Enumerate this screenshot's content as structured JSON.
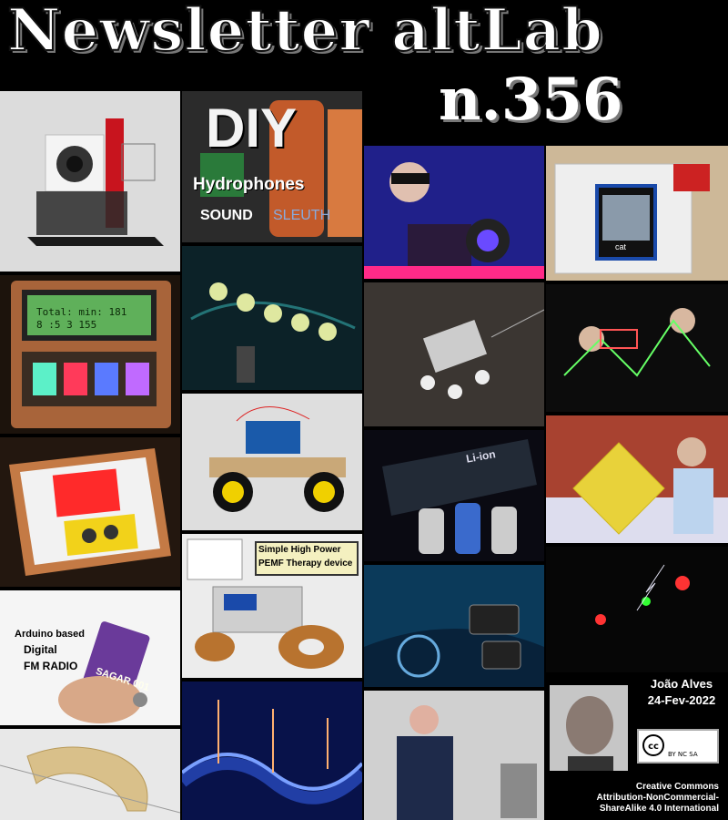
{
  "header": {
    "title": "Newsletter altLab",
    "issue": "n.356"
  },
  "tiles": {
    "hydrophones": {
      "big": "DIY",
      "sub": "Hydrophones",
      "brand_a": "SOUND",
      "brand_b": "SLEUTH"
    },
    "pemf": {
      "line1": "Simple High Power",
      "line2": "PEMF Therapy device"
    },
    "fm_radio": {
      "line1": "Arduino based",
      "line2": "Digital",
      "line3": "FM RADIO",
      "board": "SAGAR 001"
    },
    "lcd": {
      "line1": "Total: min: 181",
      "line2": "8 :5 3 155"
    },
    "battery": {
      "label": "Li-ion"
    },
    "tft": {
      "label": "cat"
    }
  },
  "author": {
    "name": "João Alves",
    "date": "24-Fev-2022"
  },
  "license": {
    "badge_cc": "cc",
    "badge_terms": "BY NC SA",
    "line1": "Creative Commons",
    "line2": "Attribution-NonCommercial-",
    "line3": "ShareAlike 4.0 International"
  }
}
